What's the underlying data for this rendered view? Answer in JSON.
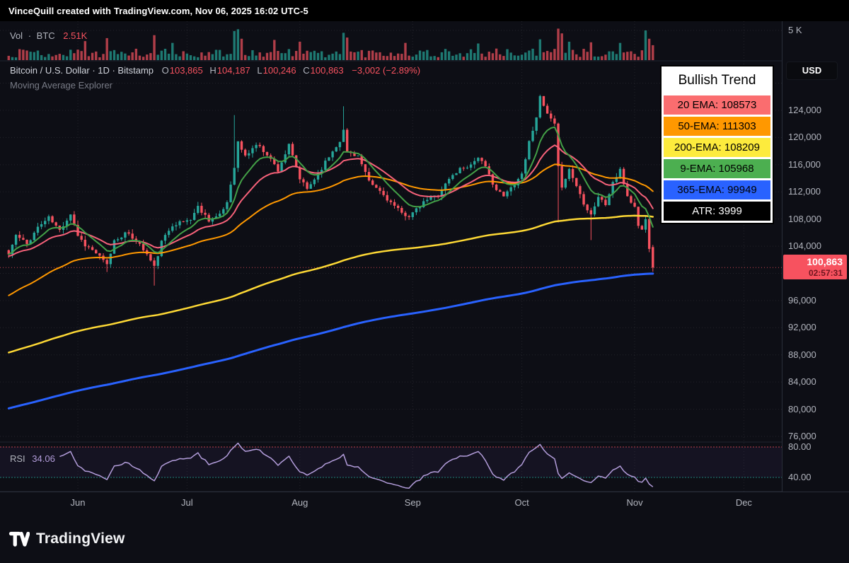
{
  "attribution_bar": {
    "text": "VinceQuill created with TradingView.com, Nov 06, 2025 16:02 UTC-5"
  },
  "volume_legend": {
    "label": "Vol",
    "sep": "·",
    "symbol": "BTC",
    "value": "2.51K"
  },
  "main_legend": {
    "title": "Bitcoin / U.S. Dollar · 1D · Bitstamp",
    "open_label": "O",
    "open": "103,865",
    "high_label": "H",
    "high": "104,187",
    "low_label": "L",
    "low": "100,246",
    "close_label": "C",
    "close": "100,863",
    "change": "−3,002 (−2.89%)",
    "indicator": "Moving Average Explorer"
  },
  "rsi_pane": {
    "label": "RSI",
    "value": "34.06"
  },
  "info_box": {
    "title": "Bullish Trend",
    "rows": [
      {
        "label": "20 EMA: 108573",
        "bg": "#fa6d6f",
        "fg": "#000000"
      },
      {
        "label": "50-EMA: 111303",
        "bg": "#ff9800",
        "fg": "#000000"
      },
      {
        "label": "200-EMA: 108209",
        "bg": "#fdeb3d",
        "fg": "#000000"
      },
      {
        "label": "9-EMA: 105968",
        "bg": "#4caf50",
        "fg": "#000000"
      },
      {
        "label": "365-EMA: 99949",
        "bg": "#2962ff",
        "fg": "#000000"
      },
      {
        "label": "ATR: 3999",
        "bg": "#000000",
        "fg": "#ffffff"
      }
    ]
  },
  "price_scale": {
    "currency": "USD",
    "volume_tick": "5 K",
    "ticks": [
      {
        "text": "124,000",
        "value": 124000
      },
      {
        "text": "120,000",
        "value": 120000
      },
      {
        "text": "116,000",
        "value": 116000
      },
      {
        "text": "112,000",
        "value": 112000
      },
      {
        "text": "108,000",
        "value": 108000
      },
      {
        "text": "104,000",
        "value": 104000
      },
      {
        "text": "96,000",
        "value": 96000
      },
      {
        "text": "92,000",
        "value": 92000
      },
      {
        "text": "88,000",
        "value": 88000
      },
      {
        "text": "84,000",
        "value": 84000
      },
      {
        "text": "80,000",
        "value": 80000
      },
      {
        "text": "76,000",
        "value": 76000
      }
    ],
    "badge": {
      "price": "100,863",
      "countdown": "02:57:31"
    },
    "rsi_ticks": [
      {
        "text": "80.00",
        "value": 80
      },
      {
        "text": "40.00",
        "value": 40
      }
    ]
  },
  "time_axis": {
    "months": [
      {
        "label": "Jun",
        "day": 19
      },
      {
        "label": "Jul",
        "day": 49
      },
      {
        "label": "Aug",
        "day": 80
      },
      {
        "label": "Sep",
        "day": 111
      },
      {
        "label": "Oct",
        "day": 141
      },
      {
        "label": "Nov",
        "day": 172
      },
      {
        "label": "Dec",
        "day": 202
      }
    ]
  },
  "footer": {
    "brand": "TradingView"
  },
  "colors": {
    "background": "#0d0e15",
    "up": "#26a69a",
    "down": "#f7525f",
    "volume_up": "rgba(38,166,154,0.7)",
    "volume_down": "rgba(247,82,95,0.7)",
    "rsi_line": "#b39ddb",
    "rsi_upper_band": "#f7525f",
    "rsi_lower_band": "#26a69a",
    "rsi_fill": "rgba(126,87,194,0.08)",
    "grid": "rgba(255,255,255,0.09)",
    "separator": "#1f2430",
    "axis_text": "#b2b5be"
  },
  "chart_data": {
    "type": "candlestick",
    "title": "Bitcoin / U.S. Dollar",
    "timeframe": "1D",
    "exchange": "Bitstamp",
    "trend_label": "Bullish Trend",
    "atr": 3999,
    "last_ohlc": {
      "open": 103865,
      "high": 104187,
      "low": 100246,
      "close": 100863,
      "change": -3002,
      "change_pct": -2.89
    },
    "y_axis": {
      "min": 76000,
      "max": 131000,
      "tick_step": 4000,
      "currency": "USD"
    },
    "x_axis_months": [
      "Jun",
      "Jul",
      "Aug",
      "Sep",
      "Oct",
      "Nov",
      "Dec"
    ],
    "days_total": 178,
    "noise_seed": 11,
    "close_anchors": [
      [
        0,
        102800
      ],
      [
        2,
        105600
      ],
      [
        5,
        104300
      ],
      [
        8,
        106800
      ],
      [
        11,
        108200
      ],
      [
        14,
        106300
      ],
      [
        17,
        108800
      ],
      [
        19,
        105600
      ],
      [
        21,
        104200
      ],
      [
        24,
        103000
      ],
      [
        27,
        101200
      ],
      [
        29,
        104800
      ],
      [
        32,
        105900
      ],
      [
        35,
        104900
      ],
      [
        38,
        102800
      ],
      [
        40,
        100900
      ],
      [
        42,
        104600
      ],
      [
        45,
        107200
      ],
      [
        48,
        107600
      ],
      [
        50,
        108000
      ],
      [
        52,
        109800
      ],
      [
        55,
        107900
      ],
      [
        58,
        108500
      ],
      [
        60,
        110500
      ],
      [
        62,
        115800
      ],
      [
        63,
        119300
      ],
      [
        65,
        117200
      ],
      [
        68,
        119000
      ],
      [
        71,
        117600
      ],
      [
        74,
        115200
      ],
      [
        77,
        118800
      ],
      [
        80,
        113900
      ],
      [
        82,
        112400
      ],
      [
        85,
        114700
      ],
      [
        88,
        117200
      ],
      [
        91,
        119600
      ],
      [
        92,
        121000
      ],
      [
        93,
        117900
      ],
      [
        96,
        117300
      ],
      [
        99,
        113400
      ],
      [
        102,
        112100
      ],
      [
        105,
        110400
      ],
      [
        108,
        108800
      ],
      [
        110,
        108500
      ],
      [
        112,
        109300
      ],
      [
        115,
        110900
      ],
      [
        118,
        111600
      ],
      [
        121,
        113900
      ],
      [
        124,
        115400
      ],
      [
        127,
        116000
      ],
      [
        129,
        117200
      ],
      [
        131,
        115500
      ],
      [
        134,
        112300
      ],
      [
        136,
        111300
      ],
      [
        138,
        112600
      ],
      [
        140,
        113900
      ],
      [
        141,
        114700
      ],
      [
        143,
        119300
      ],
      [
        145,
        123200
      ],
      [
        146,
        125800
      ],
      [
        148,
        123400
      ],
      [
        150,
        121800
      ],
      [
        151,
        115500
      ],
      [
        152,
        112900
      ],
      [
        154,
        115300
      ],
      [
        156,
        112900
      ],
      [
        158,
        110400
      ],
      [
        160,
        108700
      ],
      [
        162,
        111300
      ],
      [
        164,
        110100
      ],
      [
        166,
        113400
      ],
      [
        168,
        115100
      ],
      [
        170,
        111400
      ],
      [
        172,
        109700
      ],
      [
        173,
        107100
      ],
      [
        174,
        106400
      ],
      [
        175,
        107900
      ],
      [
        176,
        103900
      ],
      [
        177,
        100863
      ]
    ],
    "wick_overrides": {
      "27": {
        "low": 100200
      },
      "40": {
        "low": 98200
      },
      "62": {
        "high": 123300
      },
      "92": {
        "high": 124600
      },
      "146": {
        "high": 126300
      },
      "151": {
        "low": 107500
      },
      "160": {
        "low": 104900
      }
    },
    "emas": [
      {
        "name": "9-EMA",
        "period": 9,
        "color": "#43a047",
        "width": 2,
        "seed": null,
        "last": 105968
      },
      {
        "name": "20 EMA",
        "period": 20,
        "color": "#f7627a",
        "width": 2,
        "seed": 102500,
        "last": 108573
      },
      {
        "name": "50-EMA",
        "period": 50,
        "color": "#ff9800",
        "width": 2,
        "seed": 96500,
        "last": 111303
      },
      {
        "name": "200-EMA",
        "period": 200,
        "color": "#fdd835",
        "width": 2.5,
        "seed": 88200,
        "last": 108209
      },
      {
        "name": "365-EMA",
        "period": 365,
        "color": "#2962ff",
        "width": 3,
        "seed": 80000,
        "last": 99949
      }
    ],
    "volume": {
      "unit": "K",
      "scale_max": 5,
      "current": 2.51,
      "spikes": {
        "21": 3.2,
        "27": 3.7,
        "40": 4.2,
        "45": 2.9,
        "62": 4.9,
        "63": 5.2,
        "64": 3.6,
        "73": 3.4,
        "80": 3.1,
        "92": 4.6,
        "93": 3.8,
        "109": 2.9,
        "129": 2.8,
        "146": 3.5,
        "151": 5.3,
        "152": 4.5,
        "154": 3.1,
        "160": 3.0,
        "168": 2.9,
        "175": 5.0,
        "176": 3.6,
        "177": 2.51
      }
    },
    "rsi": {
      "period": 14,
      "current": 34.06,
      "upper_band": 80,
      "lower_band": 40
    }
  }
}
